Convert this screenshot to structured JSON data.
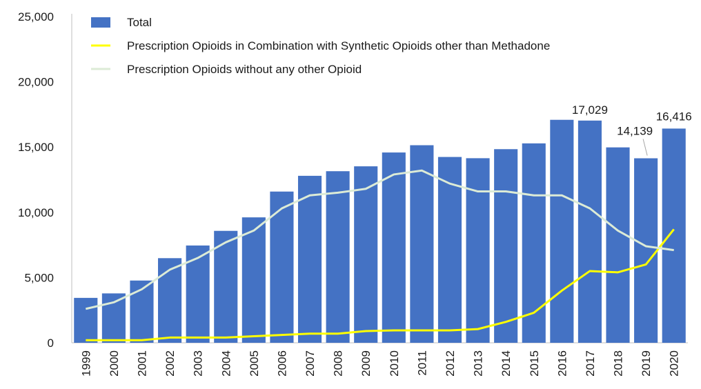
{
  "chart_data": {
    "type": "bar",
    "categories": [
      "1999",
      "2000",
      "2001",
      "2002",
      "2003",
      "2004",
      "2005",
      "2006",
      "2007",
      "2008",
      "2009",
      "2010",
      "2011",
      "2012",
      "2013",
      "2014",
      "2015",
      "2016",
      "2017",
      "2018",
      "2019",
      "2020"
    ],
    "series": [
      {
        "name": "Total",
        "type": "bar",
        "color": "#4472C4",
        "values": [
          3442,
          3785,
          4770,
          6485,
          7456,
          8577,
          9612,
          11589,
          12796,
          13149,
          13523,
          14583,
          15140,
          14240,
          14145,
          14838,
          15281,
          17087,
          17029,
          14975,
          14139,
          16416
        ]
      },
      {
        "name": "Prescription Opioids in Combination with Synthetic Opioids other than Methadone",
        "type": "line",
        "color": "#FFFF00",
        "values": [
          200,
          200,
          200,
          400,
          400,
          400,
          500,
          600,
          700,
          700,
          900,
          950,
          950,
          950,
          1050,
          1600,
          2300,
          4000,
          5500,
          5400,
          6000,
          8700
        ]
      },
      {
        "name": "Prescription Opioids without any other Opioid",
        "type": "line",
        "color": "#DCEBD6",
        "values": [
          2600,
          3100,
          4100,
          5600,
          6500,
          7700,
          8600,
          10300,
          11300,
          11500,
          11800,
          12900,
          13200,
          12200,
          11600,
          11600,
          11300,
          11300,
          10300,
          8600,
          7400,
          7100
        ]
      }
    ],
    "data_labels": [
      {
        "category": "2017",
        "text": "17,029"
      },
      {
        "category": "2019",
        "text": "14,139"
      },
      {
        "category": "2020",
        "text": "16,416"
      }
    ],
    "ylim": [
      0,
      25000
    ],
    "yticks": [
      0,
      5000,
      10000,
      15000,
      20000,
      25000
    ],
    "ytick_labels": [
      "0",
      "5,000",
      "10,000",
      "15,000",
      "20,000",
      "25,000"
    ],
    "grid": false,
    "legend_position": "top-left",
    "title": "",
    "xlabel": "",
    "ylabel": ""
  }
}
